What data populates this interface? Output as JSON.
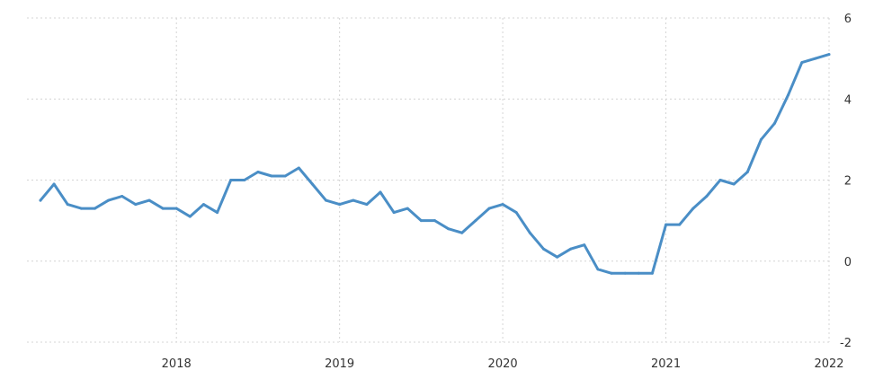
{
  "chart_data": {
    "type": "line",
    "title": "",
    "xlabel": "",
    "ylabel": "",
    "xlim": [
      "2017-03",
      "2022-01"
    ],
    "ylim": [
      -2,
      6
    ],
    "y_ticks": [
      -2,
      0,
      2,
      4,
      6
    ],
    "x_ticks": [
      {
        "label": "2018",
        "date": "2018-01"
      },
      {
        "label": "2019",
        "date": "2019-01"
      },
      {
        "label": "2020",
        "date": "2020-01"
      },
      {
        "label": "2021",
        "date": "2021-01"
      },
      {
        "label": "2022",
        "date": "2022-01"
      }
    ],
    "grid": true,
    "y_axis_side": "right",
    "line_color": "#4a8ec6",
    "series": [
      {
        "x": [
          "2017-03",
          "2017-04",
          "2017-05",
          "2017-06",
          "2017-07",
          "2017-08",
          "2017-09",
          "2017-10",
          "2017-11",
          "2017-12",
          "2018-01",
          "2018-02",
          "2018-03",
          "2018-04",
          "2018-05",
          "2018-06",
          "2018-07",
          "2018-08",
          "2018-09",
          "2018-10",
          "2018-11",
          "2018-12",
          "2019-01",
          "2019-02",
          "2019-03",
          "2019-04",
          "2019-05",
          "2019-06",
          "2019-07",
          "2019-08",
          "2019-09",
          "2019-10",
          "2019-11",
          "2019-12",
          "2020-01",
          "2020-02",
          "2020-03",
          "2020-04",
          "2020-05",
          "2020-06",
          "2020-07",
          "2020-08",
          "2020-09",
          "2020-10",
          "2020-11",
          "2020-12",
          "2021-01",
          "2021-02",
          "2021-03",
          "2021-04",
          "2021-05",
          "2021-06",
          "2021-07",
          "2021-08",
          "2021-09",
          "2021-10",
          "2021-11",
          "2021-12",
          "2022-01"
        ],
        "values": [
          1.5,
          1.9,
          1.4,
          1.3,
          1.3,
          1.5,
          1.6,
          1.4,
          1.5,
          1.3,
          1.3,
          1.1,
          1.4,
          1.2,
          2.0,
          2.0,
          2.2,
          2.1,
          2.1,
          2.3,
          1.9,
          1.5,
          1.4,
          1.5,
          1.4,
          1.7,
          1.2,
          1.3,
          1.0,
          1.0,
          0.8,
          0.7,
          1.0,
          1.3,
          1.4,
          1.2,
          0.7,
          0.3,
          0.1,
          0.3,
          0.4,
          -0.2,
          -0.3,
          -0.3,
          -0.3,
          -0.3,
          0.9,
          0.9,
          1.3,
          1.6,
          2.0,
          1.9,
          2.2,
          3.0,
          3.4,
          4.1,
          4.9,
          5.0,
          5.1
        ]
      }
    ]
  }
}
